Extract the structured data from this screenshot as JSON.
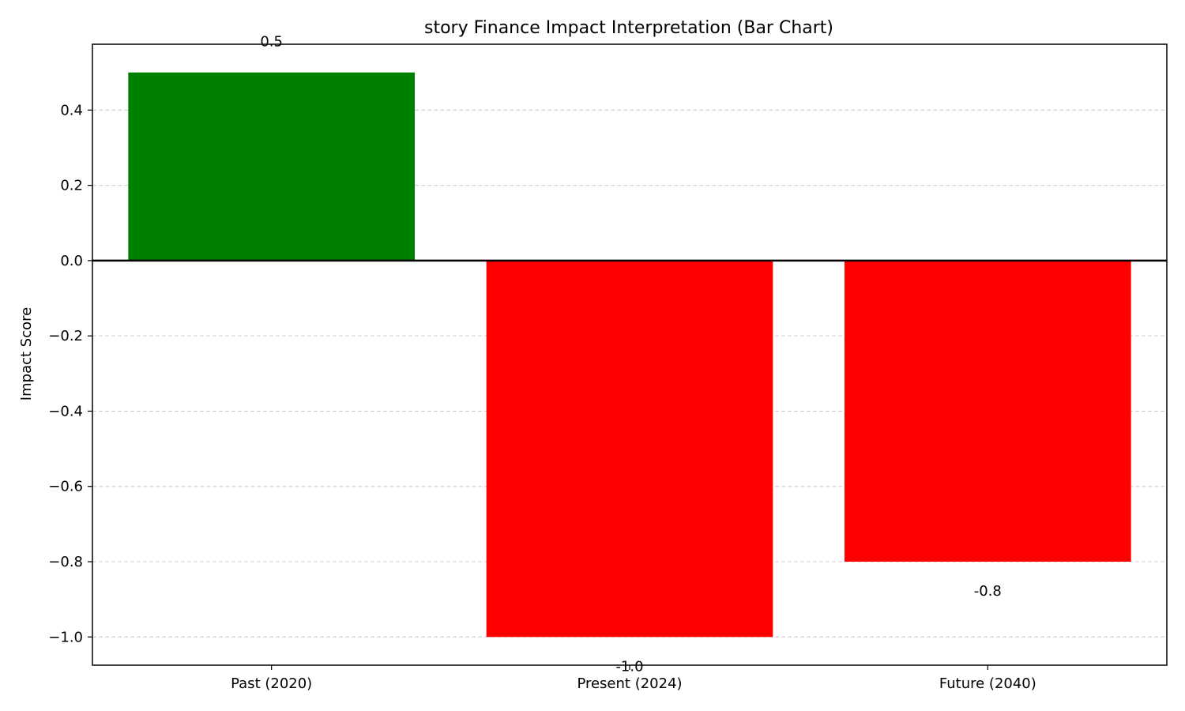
{
  "chart_data": {
    "type": "bar",
    "title": "story Finance Impact Interpretation (Bar Chart)",
    "xlabel": "",
    "ylabel": "Impact Score",
    "categories": [
      "Past (2020)",
      "Present (2024)",
      "Future (2040)"
    ],
    "values": [
      0.5,
      -1.0,
      -0.8
    ],
    "value_labels": [
      "0.5",
      "-1.0",
      "-0.8"
    ],
    "bar_colors": [
      "#008000",
      "#ff0000",
      "#ff0000"
    ],
    "ylim": [
      -1.075,
      0.575
    ],
    "yticks": [
      0.4,
      0.2,
      0.0,
      -0.2,
      -0.4,
      -0.6,
      -0.8,
      -1.0
    ],
    "ytick_labels": [
      "0.4",
      "0.2",
      "0.0",
      "−0.2",
      "−0.4",
      "−0.6",
      "−0.8",
      "−1.0"
    ],
    "grid": "y-dashed",
    "legend": "none",
    "zero_line": true
  }
}
